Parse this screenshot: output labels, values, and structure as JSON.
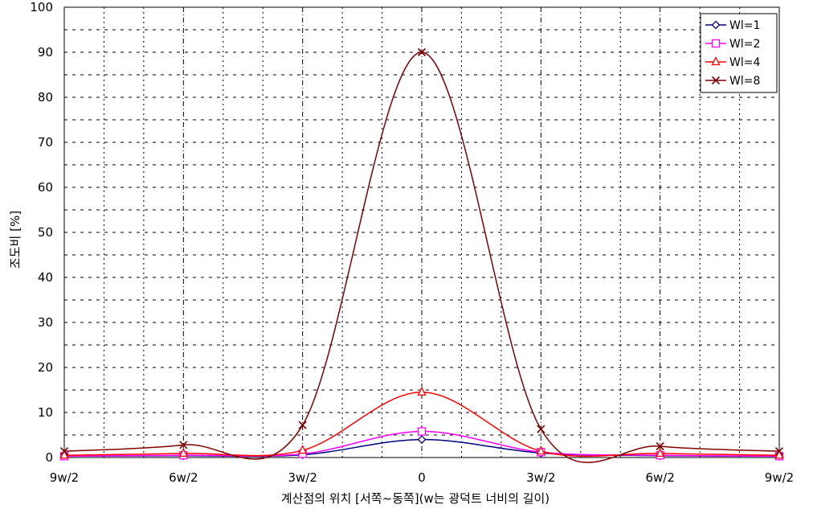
{
  "chart_data": {
    "type": "line",
    "title": "",
    "xlabel": "계산점의 위치 [서쪽~동쪽](w는 광덕트 너비의 길이)",
    "ylabel": "조도비  [%]",
    "x_tick_labels": [
      "9w/2",
      "6w/2",
      "3w/2",
      "0",
      "3w/2",
      "6w/2",
      "9w/2"
    ],
    "x_tick_positions": [
      -4.5,
      -3,
      -1.5,
      0,
      1.5,
      3,
      4.5
    ],
    "xlim": [
      -4.5,
      4.5
    ],
    "ylim": [
      0,
      100
    ],
    "yticks": [
      0,
      10,
      20,
      30,
      40,
      50,
      60,
      70,
      80,
      90,
      100
    ],
    "x": [
      -4.5,
      -3,
      -1.5,
      0,
      1.5,
      3,
      4.5
    ],
    "grid": true,
    "legend_position": "top-right",
    "series": [
      {
        "name": "Wl=1",
        "color": "#000080",
        "marker": "diamond",
        "values": [
          0.3,
          0.4,
          0.6,
          4.0,
          1.0,
          0.4,
          0.3
        ]
      },
      {
        "name": "Wl=2",
        "color": "#ff00ff",
        "marker": "square",
        "values": [
          0.3,
          0.5,
          0.8,
          5.8,
          1.2,
          0.5,
          0.3
        ]
      },
      {
        "name": "Wl=4",
        "color": "#ff0000",
        "marker": "triangle",
        "values": [
          0.5,
          0.9,
          1.6,
          14.5,
          1.4,
          0.9,
          0.5
        ]
      },
      {
        "name": "Wl=8",
        "color": "#800000",
        "marker": "x",
        "values": [
          1.4,
          2.8,
          7.2,
          90.0,
          6.3,
          2.5,
          1.4
        ]
      }
    ]
  }
}
